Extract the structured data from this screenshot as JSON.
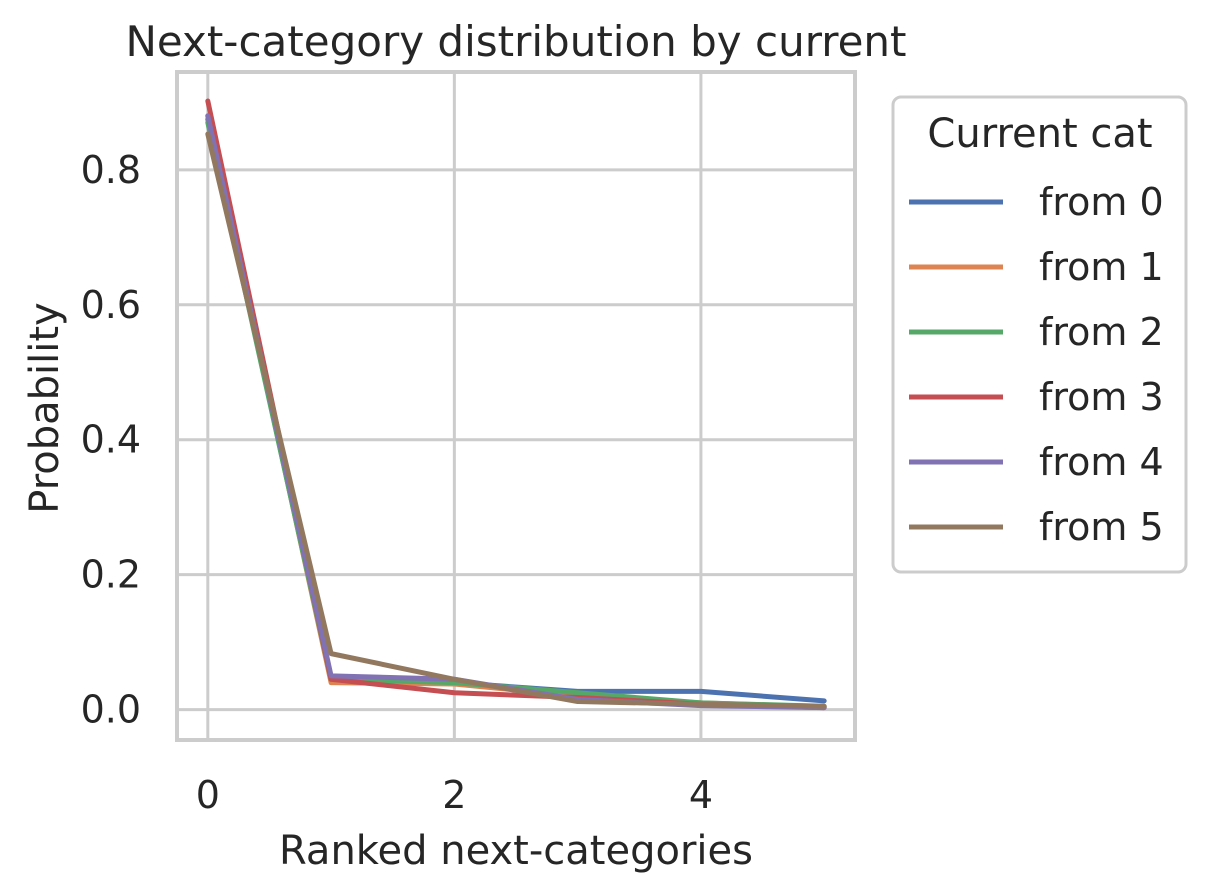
{
  "chart_data": {
    "type": "line",
    "title": "Next-category distribution by current",
    "xlabel": "Ranked next-categories",
    "ylabel": "Probability",
    "xlim": [
      -0.25,
      5.25
    ],
    "ylim": [
      -0.045,
      0.945
    ],
    "x_ticks": [
      0,
      2,
      4
    ],
    "x_tick_labels": [
      "0",
      "2",
      "4"
    ],
    "y_ticks": [
      0.0,
      0.2,
      0.4,
      0.6,
      0.8
    ],
    "y_tick_labels": [
      "0.0",
      "0.2",
      "0.4",
      "0.6",
      "0.8"
    ],
    "grid": true,
    "legend": {
      "title": "Current cat",
      "placement": "outside-right"
    },
    "x": [
      0,
      1,
      2,
      3,
      4,
      5
    ],
    "series": [
      {
        "name": "from 0",
        "color": "#4c72b0",
        "values": [
          0.875,
          0.045,
          0.04,
          0.027,
          0.027,
          0.013
        ]
      },
      {
        "name": "from 1",
        "color": "#dd8452",
        "values": [
          0.88,
          0.04,
          0.038,
          0.02,
          0.01,
          0.004
        ]
      },
      {
        "name": "from 2",
        "color": "#55a868",
        "values": [
          0.87,
          0.045,
          0.04,
          0.025,
          0.01,
          0.005
        ]
      },
      {
        "name": "from 3",
        "color": "#c44e52",
        "values": [
          0.902,
          0.045,
          0.025,
          0.018,
          0.008,
          0.003
        ]
      },
      {
        "name": "from 4",
        "color": "#8172b3",
        "values": [
          0.88,
          0.05,
          0.045,
          0.015,
          0.006,
          0.003
        ]
      },
      {
        "name": "from 5",
        "color": "#937860",
        "values": [
          0.853,
          0.083,
          0.045,
          0.012,
          0.008,
          0.005
        ]
      }
    ]
  }
}
